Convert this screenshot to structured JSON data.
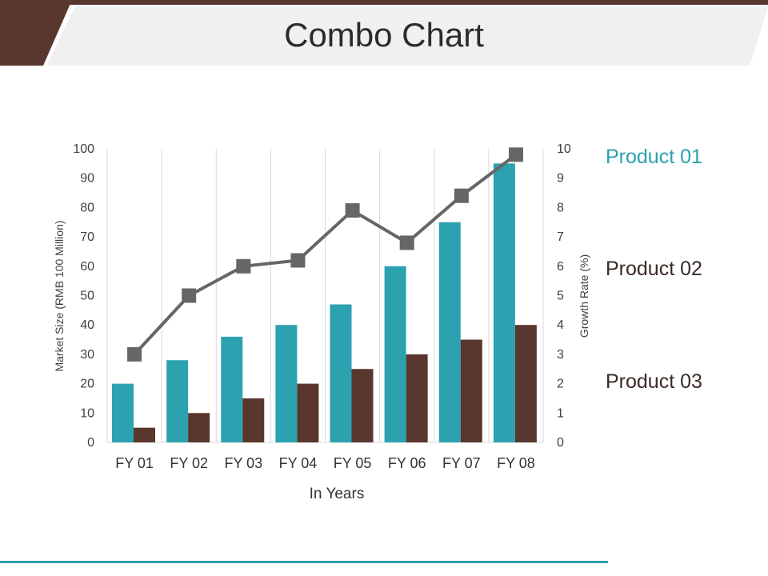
{
  "page": {
    "title": "Combo Chart",
    "colors": {
      "accent_dark": "#5a372e",
      "accent_teal": "#2aa0ad",
      "title_band": "#f0f0f0"
    }
  },
  "chart_data": {
    "type": "bar",
    "combo": true,
    "categories": [
      "FY 01",
      "FY 02",
      "FY 03",
      "FY 04",
      "FY 05",
      "FY 06",
      "FY 07",
      "FY 08"
    ],
    "series": [
      {
        "name": "Product 01",
        "type": "bar",
        "axis": "left",
        "color": "#2ca2b0",
        "values": [
          20,
          28,
          36,
          40,
          47,
          60,
          75,
          95
        ]
      },
      {
        "name": "Product 02",
        "type": "bar",
        "axis": "left",
        "color": "#5a372e",
        "values": [
          5,
          10,
          15,
          20,
          25,
          30,
          35,
          40
        ]
      },
      {
        "name": "Product 03",
        "type": "line",
        "axis": "right",
        "color": "#666666",
        "marker": "square",
        "values": [
          3,
          5,
          6,
          6.2,
          7.9,
          6.8,
          8.4,
          9.8
        ]
      }
    ],
    "xlabel": "In Years",
    "ylabel": "Market Size (RMB 100 Million)",
    "y2label": "Growth Rate (%)",
    "ylim": [
      0,
      100
    ],
    "y2lim": [
      0,
      10
    ],
    "yticks": [
      "0",
      "10",
      "20",
      "30",
      "40",
      "50",
      "60",
      "70",
      "80",
      "90",
      "100"
    ],
    "y2ticks": [
      "0",
      "1",
      "2",
      "3",
      "4",
      "5",
      "6",
      "7",
      "8",
      "9",
      "10"
    ],
    "grid": "vertical",
    "legend_placement": "right",
    "legend_colors": [
      "#2aa0ad",
      "#3a2a26",
      "#3a2a26"
    ]
  }
}
